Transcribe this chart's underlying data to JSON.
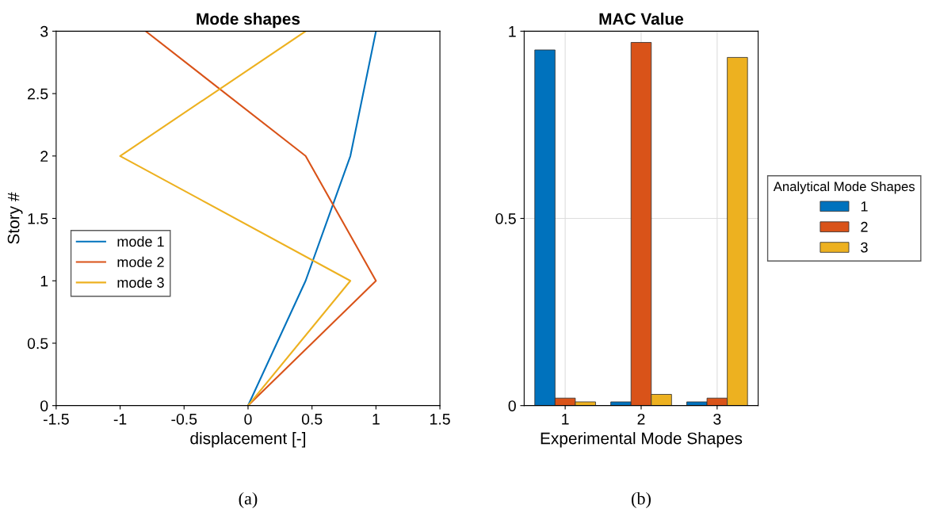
{
  "chart_data": [
    {
      "type": "line",
      "title": "Mode shapes",
      "xlabel": "displacement [-]",
      "ylabel": "Story #",
      "xlim": [
        -1.5,
        1.5
      ],
      "xticks": [
        -1.5,
        -1,
        -0.5,
        0,
        0.5,
        1,
        1.5
      ],
      "ylim": [
        0,
        3
      ],
      "yticks": [
        0,
        0.5,
        1,
        1.5,
        2,
        2.5,
        3
      ],
      "grid": false,
      "legend": "left",
      "annotations": [
        "(a)"
      ],
      "series": [
        {
          "name": "mode 1",
          "color": "#0072bd",
          "x": [
            0,
            0.45,
            0.8,
            1
          ],
          "values": [
            0,
            1,
            2,
            3
          ]
        },
        {
          "name": "mode 2",
          "color": "#d95319",
          "x": [
            0,
            1,
            0.45,
            -0.8
          ],
          "values": [
            0,
            1,
            2,
            3
          ]
        },
        {
          "name": "mode 3",
          "color": "#edb120",
          "x": [
            0,
            0.8,
            -1,
            0.45
          ],
          "values": [
            0,
            1,
            2,
            3
          ]
        }
      ]
    },
    {
      "type": "bar",
      "title": "MAC Value",
      "xlabel": "Experimental Mode Shapes",
      "legend_title": "Analytical Mode Shapes",
      "categories": [
        "1",
        "2",
        "3"
      ],
      "ylim": [
        0,
        1
      ],
      "yticks": [
        0,
        0.5,
        1
      ],
      "grid": true,
      "legend": "right",
      "annotations": [
        "(b)"
      ],
      "series": [
        {
          "name": "1",
          "color": "#0072bd",
          "values": [
            0.95,
            0.01,
            0.01
          ]
        },
        {
          "name": "2",
          "color": "#d95319",
          "values": [
            0.02,
            0.97,
            0.02
          ]
        },
        {
          "name": "3",
          "color": "#edb120",
          "values": [
            0.01,
            0.03,
            0.93
          ]
        }
      ]
    }
  ]
}
